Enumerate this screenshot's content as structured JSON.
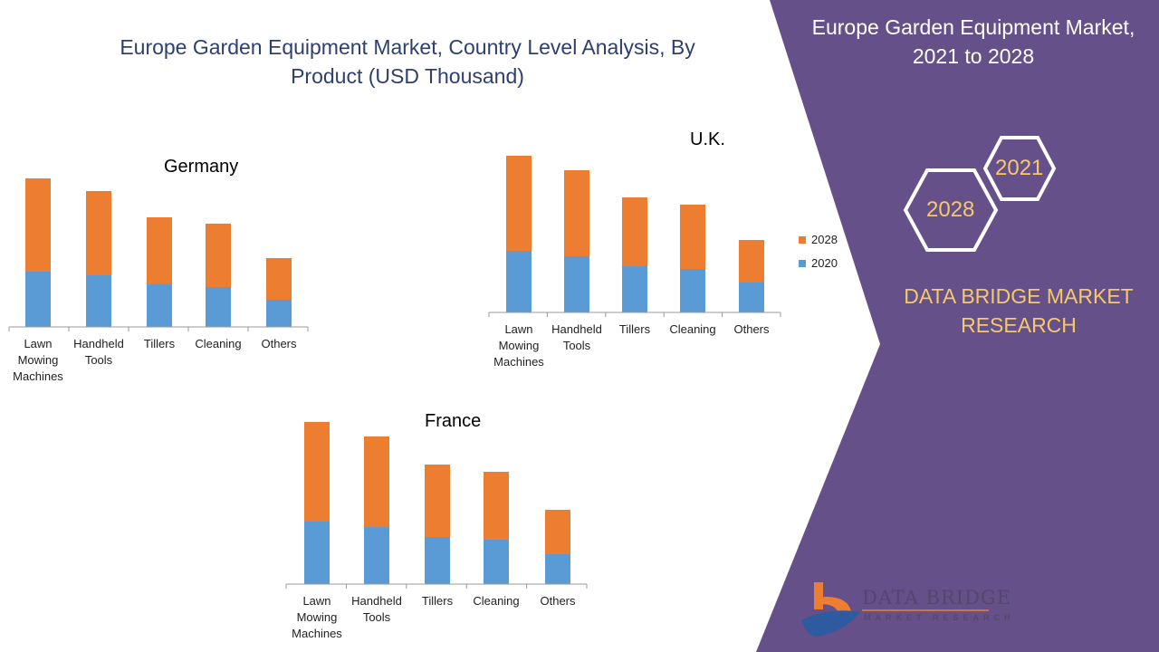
{
  "header": {
    "title": "Europe Garden Equipment Market, Country Level Analysis, By Product (USD Thousand)"
  },
  "side_panel": {
    "title": "Europe Garden Equipment Market, 2021 to 2028",
    "hex_years": [
      "2021",
      "2028"
    ],
    "brand": "DATA BRIDGE MARKET RESEARCH",
    "logo_text": "DATA BRIDGE",
    "logo_subtext": "MARKET RESEARCH"
  },
  "colors": {
    "s2020": "#5b9bd5",
    "s2028": "#ed7d31",
    "panel": "#665089",
    "gold": "#f5c96b"
  },
  "legend": [
    "2028",
    "2020"
  ],
  "chart_data": [
    {
      "type": "bar",
      "stacked": true,
      "title": "Germany",
      "categories": [
        "Lawn Mowing Machines",
        "Handheld Tools",
        "Tillers",
        "Cleaning",
        "Others"
      ],
      "series": [
        {
          "name": "2020",
          "values": [
            61,
            57,
            47,
            44,
            30
          ]
        },
        {
          "name": "2028",
          "values": [
            103,
            93,
            74,
            70,
            46
          ]
        }
      ],
      "ylim": [
        0,
        180
      ],
      "xlabel": "",
      "ylabel": "",
      "grid": false
    },
    {
      "type": "bar",
      "stacked": true,
      "title": "U.K.",
      "categories": [
        "Lawn Mowing Machines",
        "Handheld Tools",
        "Tillers",
        "Cleaning",
        "Others"
      ],
      "series": [
        {
          "name": "2020",
          "values": [
            68,
            62,
            51,
            48,
            33
          ]
        },
        {
          "name": "2028",
          "values": [
            105,
            95,
            76,
            71,
            47
          ]
        }
      ],
      "ylim": [
        0,
        180
      ],
      "xlabel": "",
      "ylabel": "",
      "grid": false,
      "legend": "right"
    },
    {
      "type": "bar",
      "stacked": true,
      "title": "France",
      "categories": [
        "Lawn Mowing Machines",
        "Handheld Tools",
        "Tillers",
        "Cleaning",
        "Others"
      ],
      "series": [
        {
          "name": "2020",
          "values": [
            69,
            63,
            52,
            49,
            33
          ]
        },
        {
          "name": "2028",
          "values": [
            110,
            100,
            80,
            75,
            49
          ]
        }
      ],
      "ylim": [
        0,
        180
      ],
      "xlabel": "",
      "ylabel": "",
      "grid": false
    }
  ]
}
